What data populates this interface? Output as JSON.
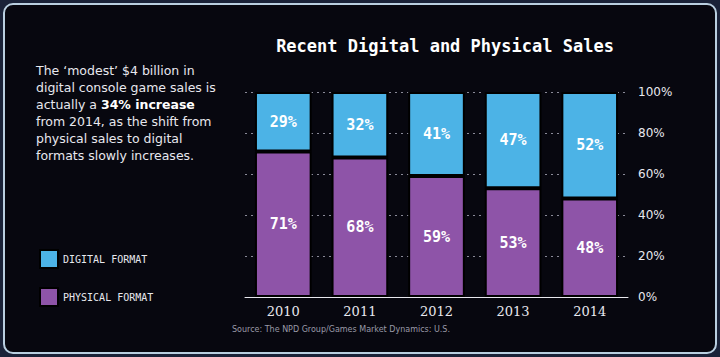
{
  "chart_data": {
    "type": "bar",
    "title": "Recent Digital and Physical Sales",
    "annotation": {
      "text": "The ‘modest’ $4 billion in digital console game sales is actually a 34% increase from 2014, as the shift from physical sales to digital formats slowly increases.",
      "bold": "34% increase"
    },
    "source": "Source: The NPD Group/Games Market Dynamics: U.S.",
    "categories": [
      "2010",
      "2011",
      "2012",
      "2013",
      "2014"
    ],
    "series": [
      {
        "name": "DIGITAL FORMAT",
        "color": "#4cb3e6",
        "values": [
          29,
          32,
          41,
          47,
          52
        ],
        "value_labels": [
          "29%",
          "32%",
          "41%",
          "47%",
          "52%"
        ]
      },
      {
        "name": "PHYSICAL FORMAT",
        "color": "#8e54a8",
        "values": [
          71,
          68,
          59,
          53,
          48
        ],
        "value_labels": [
          "71%",
          "68%",
          "59%",
          "53%",
          "48%"
        ]
      }
    ],
    "stacked": true,
    "data_labels": true,
    "grid": true,
    "legend": "left",
    "ylim": [
      0,
      100
    ],
    "yticks": [
      {
        "value": 0,
        "label": "0%"
      },
      {
        "value": 20,
        "label": "20%"
      },
      {
        "value": 40,
        "label": "40%"
      },
      {
        "value": 60,
        "label": "60%"
      },
      {
        "value": 80,
        "label": "80%"
      },
      {
        "value": 100,
        "label": "100%"
      }
    ]
  }
}
